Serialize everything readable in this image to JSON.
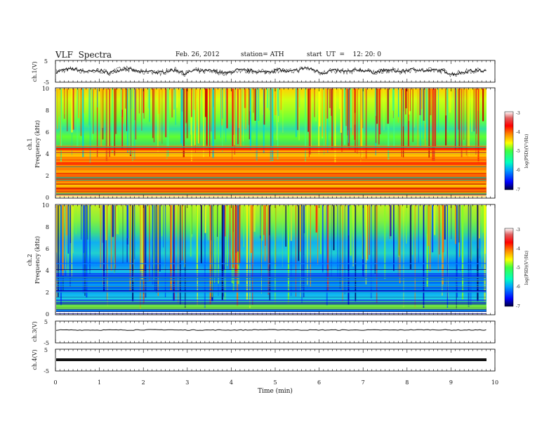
{
  "header": {
    "title": "VLF  Spectra",
    "date": "Feb. 26, 2012",
    "station": "station= ATH",
    "start": "start  UT  =    12: 20: 0"
  },
  "chart_data": [
    {
      "type": "line",
      "panel": "ch1-waveform",
      "ylabel": "ch.1(V)",
      "ylim": [
        -5,
        5
      ],
      "yticks": [
        "5",
        "-5"
      ],
      "series": [
        {
          "values": [
            -0.3,
            0.8,
            1.2,
            0.2,
            -0.2,
            0.5,
            -0.8,
            0.2,
            1.5,
            0.4,
            -0.5,
            0.1,
            -0.8,
            0.3,
            0.6,
            -1.2,
            0.4,
            0.1,
            0.3,
            -0.4,
            -1.0,
            0.7,
            0.2,
            0.3,
            -0.5,
            0.1,
            0.8,
            -0.3,
            0.5,
            1.8,
            0.6,
            -0.9,
            0.4,
            0.2,
            -0.2,
            0.8,
            0.3,
            -0.6,
            0.4,
            0.5,
            -0.2,
            0.7,
            1.0,
            0.1,
            0.6,
            0.3,
            -1.5,
            -0.8,
            0.2,
            0.5,
            0.0
          ]
        }
      ],
      "xlim": [
        0,
        9.8
      ]
    },
    {
      "type": "heatmap",
      "panel": "ch1-spectrogram",
      "ylabel": "ch.1\nFrequency (kHz)",
      "ylim": [
        0,
        10
      ],
      "yticks": [
        "0",
        "2",
        "4",
        "6",
        "8",
        "10"
      ],
      "colorbar": {
        "label": "log(PSD)(V²/Hz)",
        "range": [
          -7,
          -3
        ],
        "ticks": [
          "-3",
          "-4",
          "-5",
          "-6",
          "-7"
        ]
      },
      "profile_log_psd": [
        {
          "f_khz": [
            0.0,
            0.5
          ],
          "v": -5.4
        },
        {
          "f_khz": [
            0.5,
            1.0
          ],
          "v": -4.4
        },
        {
          "f_khz": [
            1.0,
            2.0
          ],
          "v": -3.8
        },
        {
          "f_khz": [
            2.0,
            3.5
          ],
          "v": -3.7
        },
        {
          "f_khz": [
            3.5,
            4.5
          ],
          "v": -4.2
        },
        {
          "f_khz": [
            4.5,
            5.0
          ],
          "v": -4.8
        },
        {
          "f_khz": [
            5.0,
            7.0
          ],
          "v": -4.9
        },
        {
          "f_khz": [
            7.0,
            10.0
          ],
          "v": -4.6
        }
      ]
    },
    {
      "type": "heatmap",
      "panel": "ch2-spectrogram",
      "ylabel": "ch.2\nFrequency (kHz)",
      "ylim": [
        0,
        10
      ],
      "yticks": [
        "0",
        "2",
        "4",
        "6",
        "8",
        "10"
      ],
      "colorbar": {
        "label": "log(PSD)(V²/Hz)",
        "range": [
          -7,
          -3
        ],
        "ticks": [
          "-3",
          "-4",
          "-5",
          "-6",
          "-7"
        ]
      },
      "profile_log_psd": [
        {
          "f_khz": [
            0.0,
            0.5
          ],
          "v": -5.0
        },
        {
          "f_khz": [
            0.5,
            1.0
          ],
          "v": -4.8
        },
        {
          "f_khz": [
            1.0,
            3.0
          ],
          "v": -5.6
        },
        {
          "f_khz": [
            3.0,
            4.5
          ],
          "v": -5.8
        },
        {
          "f_khz": [
            4.5,
            7.0
          ],
          "v": -5.3
        },
        {
          "f_khz": [
            7.0,
            10.0
          ],
          "v": -4.9
        }
      ]
    },
    {
      "type": "line",
      "panel": "ch3-waveform",
      "ylabel": "ch.3(V)",
      "ylim": [
        -5,
        5
      ],
      "yticks": [
        "5",
        "-5"
      ],
      "series": [
        {
          "values": [
            1.0,
            1.0,
            1.1,
            1.0,
            1.0,
            1.1,
            1.0,
            1.0,
            1.0,
            1.1,
            1.0,
            1.0
          ]
        }
      ]
    },
    {
      "type": "line",
      "panel": "ch4-waveform",
      "ylabel": "ch.4(V)",
      "ylim": [
        -5,
        5
      ],
      "yticks": [
        "5",
        "-5"
      ],
      "series": [
        {
          "values": [
            0.0,
            0.0,
            0.0,
            0.0,
            0.0,
            0.0
          ]
        }
      ]
    }
  ],
  "xaxis": {
    "label": "Time  (min)",
    "xlim": [
      0,
      10
    ],
    "data_end_min": 9.8,
    "ticks": [
      "0",
      "1",
      "2",
      "3",
      "4",
      "5",
      "6",
      "7",
      "8",
      "9",
      "10"
    ]
  },
  "colors": {
    "scale": [
      "#000080",
      "#0000ff",
      "#00a0ff",
      "#00ffc0",
      "#40ff40",
      "#c0ff00",
      "#ffff00",
      "#ff8000",
      "#ff0000",
      "#c00000",
      "#ffffff"
    ]
  }
}
